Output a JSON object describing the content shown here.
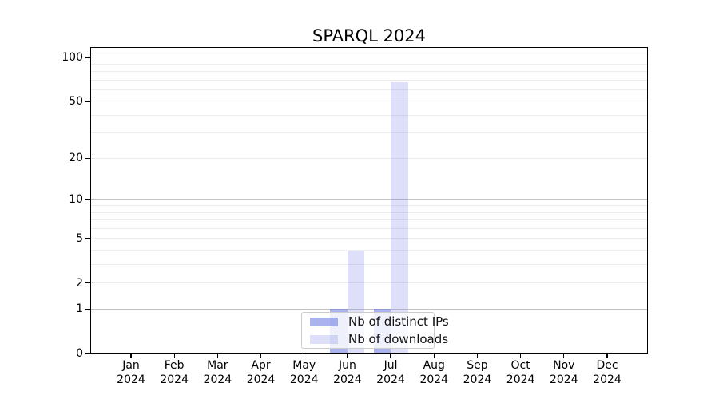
{
  "title": "SPARQL 2024",
  "chart_data": {
    "type": "bar",
    "title": "SPARQL 2024",
    "categories": [
      "Jan",
      "Feb",
      "Mar",
      "Apr",
      "May",
      "Jun",
      "Jul",
      "Aug",
      "Sep",
      "Oct",
      "Nov",
      "Dec"
    ],
    "category_year": "2024",
    "series": [
      {
        "name": "Nb of distinct IPs",
        "values": [
          0,
          0,
          0,
          0,
          0,
          1,
          1,
          0,
          0,
          0,
          0,
          0
        ],
        "fill": "rgba(102,116,224,0.55)"
      },
      {
        "name": "Nb of downloads",
        "values": [
          0,
          0,
          0,
          0,
          0,
          4,
          68,
          0,
          0,
          0,
          0,
          0
        ],
        "fill": "rgba(102,116,224,0.22)"
      }
    ],
    "xlabel": "",
    "ylabel": "",
    "y_scale": "log1p",
    "y_axis_max": 117.6,
    "y_ticks": [
      0,
      1,
      2,
      5,
      10,
      20,
      50,
      100
    ],
    "grid": "horizontal",
    "grid_major_values": [
      1,
      10,
      100
    ],
    "grid_minor_values": [
      2,
      3,
      4,
      5,
      6,
      7,
      8,
      9,
      20,
      30,
      40,
      50,
      60,
      70,
      80,
      90
    ],
    "legend_position": "lower center"
  },
  "legend": {
    "items": [
      {
        "label": "Nb of distinct IPs",
        "swatch": "rgba(102,116,224,0.55)"
      },
      {
        "label": "Nb of downloads",
        "swatch": "rgba(102,116,224,0.22)"
      }
    ]
  },
  "colors": {
    "bar_base": "#6674e0",
    "grid_major": "#c3c3c3",
    "grid_minor": "#ececec",
    "spine": "#000000",
    "background": "#ffffff",
    "legend_border": "#cccccc"
  }
}
